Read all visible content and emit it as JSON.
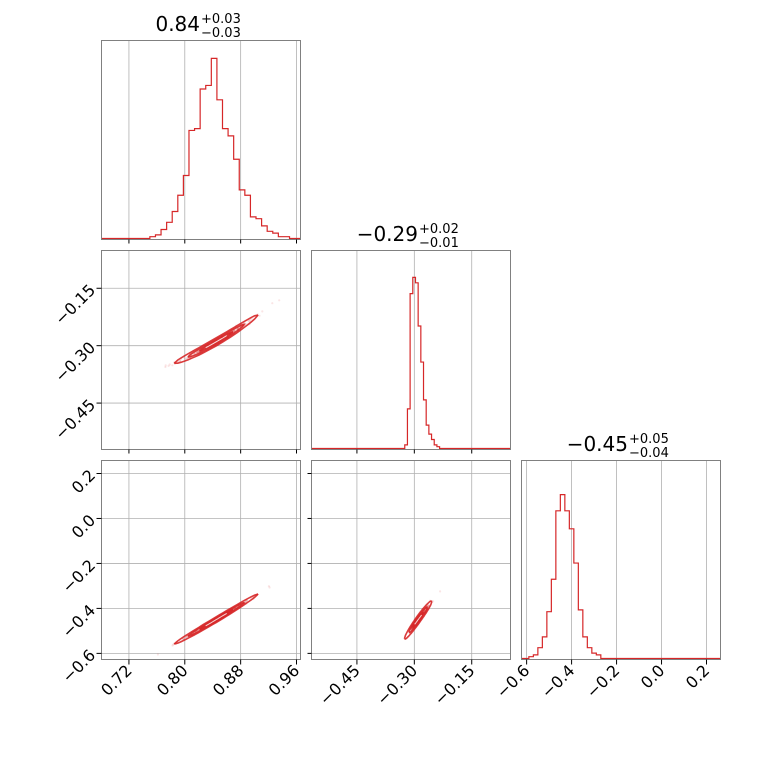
{
  "chart_data": {
    "type": "corner",
    "color": "#d62728",
    "parameters": [
      {
        "title": {
          "median": "0.84",
          "upper": "+0.03",
          "lower": "−0.03"
        },
        "range": [
          0.68,
          0.965
        ],
        "ticks": [
          0.72,
          0.8,
          0.88,
          0.96
        ],
        "tick_labels": [
          "0.72",
          "0.80",
          "0.88",
          "0.96"
        ],
        "hist_x": [
          0.75,
          0.758,
          0.766,
          0.774,
          0.782,
          0.79,
          0.798,
          0.806,
          0.814,
          0.822,
          0.83,
          0.838,
          0.846,
          0.854,
          0.862,
          0.87,
          0.878,
          0.886,
          0.894,
          0.902,
          0.91,
          0.918,
          0.926,
          0.934,
          0.942,
          0.95
        ],
        "hist_density": [
          0.01,
          0.02,
          0.05,
          0.09,
          0.15,
          0.24,
          0.35,
          0.6,
          0.61,
          0.83,
          0.85,
          1.0,
          0.77,
          0.61,
          0.57,
          0.44,
          0.27,
          0.24,
          0.12,
          0.11,
          0.07,
          0.04,
          0.03,
          0.01,
          0.01,
          0.0
        ]
      },
      {
        "title": {
          "median": "−0.29",
          "upper": "+0.02",
          "lower": "−0.01"
        },
        "range": [
          -0.57,
          -0.05
        ],
        "ticks": [
          -0.45,
          -0.3,
          -0.15
        ],
        "tick_labels": [
          "−0.45",
          "−0.30",
          "−0.15"
        ],
        "hist_x": [
          -0.325,
          -0.318,
          -0.311,
          -0.304,
          -0.297,
          -0.29,
          -0.283,
          -0.276,
          -0.269,
          -0.262,
          -0.255,
          -0.248,
          -0.241,
          -0.234
        ],
        "hist_density": [
          0.02,
          0.22,
          0.86,
          0.95,
          0.92,
          0.68,
          0.48,
          0.27,
          0.13,
          0.08,
          0.05,
          0.02,
          0.01,
          0.0
        ]
      },
      {
        "title": {
          "median": "−0.45",
          "upper": "+0.05",
          "lower": "−0.04"
        },
        "range": [
          -0.625,
          0.26
        ],
        "ticks": [
          -0.6,
          -0.4,
          -0.2,
          0.0,
          0.2
        ],
        "tick_labels": [
          "−0.6",
          "−0.4",
          "−0.2",
          "0.0",
          "0.2"
        ],
        "hist_x": [
          -0.59,
          -0.57,
          -0.55,
          -0.53,
          -0.51,
          -0.49,
          -0.47,
          -0.45,
          -0.43,
          -0.41,
          -0.39,
          -0.37,
          -0.35,
          -0.33,
          -0.31,
          -0.29,
          -0.27
        ],
        "hist_density": [
          0.01,
          0.02,
          0.06,
          0.12,
          0.26,
          0.44,
          0.82,
          0.91,
          0.82,
          0.72,
          0.53,
          0.27,
          0.12,
          0.06,
          0.03,
          0.02,
          0.0
        ]
      }
    ],
    "correlations": [
      {
        "x": 0,
        "y": 1,
        "slope": 1.05,
        "x_center": 0.845,
        "y_center": -0.29,
        "sx": 0.03,
        "curv": 2.0,
        "spread": 0.005,
        "x_span": [
          0.76,
          0.96
        ]
      },
      {
        "x": 0,
        "y": 2,
        "slope": 1.85,
        "x_center": 0.845,
        "y_center": -0.45,
        "sx": 0.03,
        "curv": 0.8,
        "spread": 0.006,
        "x_span": [
          0.76,
          0.96
        ]
      },
      {
        "x": 1,
        "y": 2,
        "slope": 2.3,
        "x_center": -0.29,
        "y_center": -0.45,
        "sx": 0.018,
        "curv": -1.5,
        "spread": 0.01,
        "x_span": [
          -0.31,
          -0.2
        ]
      }
    ],
    "grid": true,
    "axis_labels": []
  }
}
